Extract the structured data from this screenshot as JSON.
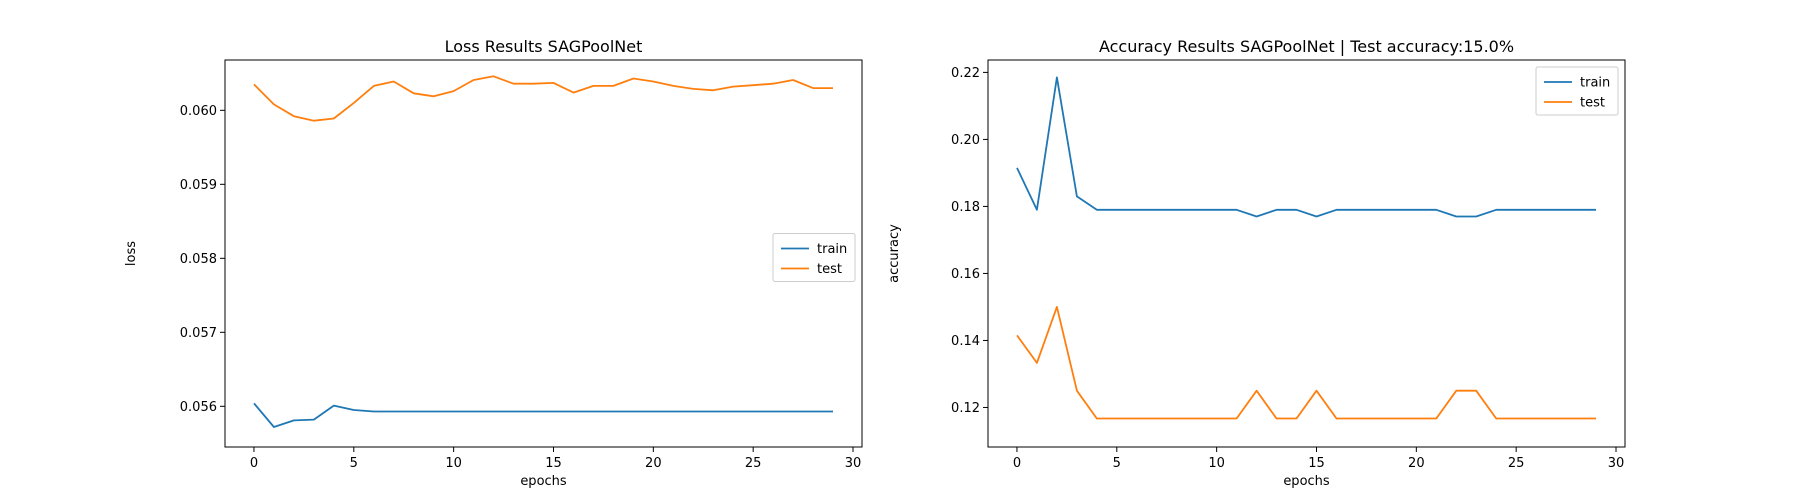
{
  "chart_data": [
    {
      "type": "line",
      "title": "Loss Results SAGPoolNet",
      "xlabel": "epochs",
      "ylabel": "loss",
      "xlim": [
        -1.45,
        30.45
      ],
      "ylim": [
        0.05545,
        0.06068
      ],
      "xticks": [
        "0",
        "5",
        "10",
        "15",
        "20",
        "25",
        "30"
      ],
      "yticks": [
        "0.056",
        "0.057",
        "0.058",
        "0.059",
        "0.060"
      ],
      "legend": "center-right",
      "x": [
        0,
        1,
        2,
        3,
        4,
        5,
        6,
        7,
        8,
        9,
        10,
        11,
        12,
        13,
        14,
        15,
        16,
        17,
        18,
        19,
        20,
        21,
        22,
        23,
        24,
        25,
        26,
        27,
        28,
        29
      ],
      "series": [
        {
          "name": "train",
          "color": "#1f77b4",
          "values": [
            0.05604,
            0.05572,
            0.05581,
            0.05582,
            0.05601,
            0.05595,
            0.05593,
            0.05593,
            0.05593,
            0.05593,
            0.05593,
            0.05593,
            0.05593,
            0.05593,
            0.05593,
            0.05593,
            0.05593,
            0.05593,
            0.05593,
            0.05593,
            0.05593,
            0.05593,
            0.05593,
            0.05593,
            0.05593,
            0.05593,
            0.05593,
            0.05593,
            0.05593,
            0.05593
          ]
        },
        {
          "name": "test",
          "color": "#ff7f0e",
          "values": [
            0.06035,
            0.06008,
            0.05992,
            0.05986,
            0.05989,
            0.0601,
            0.06033,
            0.06039,
            0.06023,
            0.06019,
            0.06026,
            0.06041,
            0.06046,
            0.06036,
            0.06036,
            0.06037,
            0.06024,
            0.06033,
            0.06033,
            0.06043,
            0.06039,
            0.06033,
            0.06029,
            0.06027,
            0.06032,
            0.06034,
            0.06036,
            0.06041,
            0.0603,
            0.0603
          ]
        }
      ]
    },
    {
      "type": "line",
      "title": "Accuracy Results SAGPoolNet | Test accuracy:15.0%",
      "xlabel": "epochs",
      "ylabel": "accuracy",
      "xlim": [
        -1.45,
        30.45
      ],
      "ylim": [
        0.1082,
        0.2237
      ],
      "xticks": [
        "0",
        "5",
        "10",
        "15",
        "20",
        "25",
        "30"
      ],
      "yticks": [
        "0.12",
        "0.14",
        "0.16",
        "0.18",
        "0.20",
        "0.22"
      ],
      "legend": "top-right",
      "x": [
        0,
        1,
        2,
        3,
        4,
        5,
        6,
        7,
        8,
        9,
        10,
        11,
        12,
        13,
        14,
        15,
        16,
        17,
        18,
        19,
        20,
        21,
        22,
        23,
        24,
        25,
        26,
        27,
        28,
        29
      ],
      "series": [
        {
          "name": "train",
          "color": "#1f77b4",
          "values": [
            0.1915,
            0.179,
            0.2185,
            0.183,
            0.179,
            0.179,
            0.179,
            0.179,
            0.179,
            0.179,
            0.179,
            0.179,
            0.177,
            0.179,
            0.179,
            0.177,
            0.179,
            0.179,
            0.179,
            0.179,
            0.179,
            0.179,
            0.177,
            0.177,
            0.179,
            0.179,
            0.179,
            0.179,
            0.179,
            0.179
          ]
        },
        {
          "name": "test",
          "color": "#ff7f0e",
          "values": [
            0.1415,
            0.1333,
            0.15,
            0.125,
            0.1167,
            0.1167,
            0.1167,
            0.1167,
            0.1167,
            0.1167,
            0.1167,
            0.1167,
            0.125,
            0.1167,
            0.1167,
            0.125,
            0.1167,
            0.1167,
            0.1167,
            0.1167,
            0.1167,
            0.1167,
            0.125,
            0.125,
            0.1167,
            0.1167,
            0.1167,
            0.1167,
            0.1167,
            0.1167
          ]
        }
      ]
    }
  ]
}
